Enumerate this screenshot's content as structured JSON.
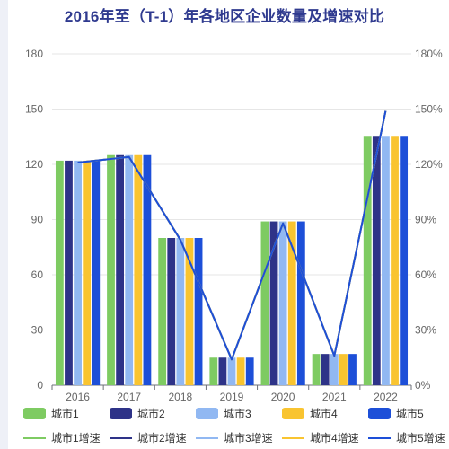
{
  "chart_data": {
    "type": "bar",
    "title": "2016年至（T-1）年各地区企业数量及增速对比",
    "categories": [
      "2016",
      "2017",
      "2018",
      "2019",
      "2020",
      "2021",
      "2022"
    ],
    "y_left": {
      "range": [
        0,
        180
      ],
      "ticks": [
        "0",
        "30",
        "60",
        "90",
        "120",
        "150",
        "180"
      ]
    },
    "y_right": {
      "range": [
        0,
        180
      ],
      "ticks": [
        "0%",
        "30%",
        "60%",
        "90%",
        "120%",
        "150%",
        "180%"
      ]
    },
    "grid": true,
    "legend_position": "bottom",
    "series": [
      {
        "name": "城市1",
        "kind": "bar",
        "color": "#7ecb62",
        "values": [
          122,
          125,
          80,
          15,
          89,
          17,
          135
        ]
      },
      {
        "name": "城市2",
        "kind": "bar",
        "color": "#2e3388",
        "values": [
          122,
          125,
          80,
          15,
          89,
          17,
          135
        ]
      },
      {
        "name": "城市3",
        "kind": "bar",
        "color": "#91b8f2",
        "values": [
          122,
          125,
          80,
          15,
          89,
          17,
          135
        ]
      },
      {
        "name": "城市4",
        "kind": "bar",
        "color": "#f9c430",
        "values": [
          122,
          125,
          80,
          15,
          89,
          17,
          135
        ]
      },
      {
        "name": "城市5",
        "kind": "bar",
        "color": "#1d4fd8",
        "values": [
          122,
          125,
          80,
          15,
          89,
          17,
          135
        ]
      },
      {
        "name": "城市1增速",
        "kind": "line",
        "color": "#7ecb62",
        "values": [
          121,
          124,
          79,
          14,
          88,
          16,
          149
        ]
      },
      {
        "name": "城市2增速",
        "kind": "line",
        "color": "#2e3388",
        "values": [
          121,
          124,
          79,
          14,
          88,
          16,
          149
        ]
      },
      {
        "name": "城市3增速",
        "kind": "line",
        "color": "#91b8f2",
        "values": [
          121,
          124,
          79,
          14,
          88,
          16,
          149
        ]
      },
      {
        "name": "城市4增速",
        "kind": "line",
        "color": "#f9c430",
        "values": [
          121,
          124,
          79,
          14,
          88,
          16,
          149
        ]
      },
      {
        "name": "城市5增速",
        "kind": "line",
        "color": "#1d4fd8",
        "values": [
          121,
          124,
          79,
          14,
          88,
          16,
          149
        ]
      }
    ]
  }
}
